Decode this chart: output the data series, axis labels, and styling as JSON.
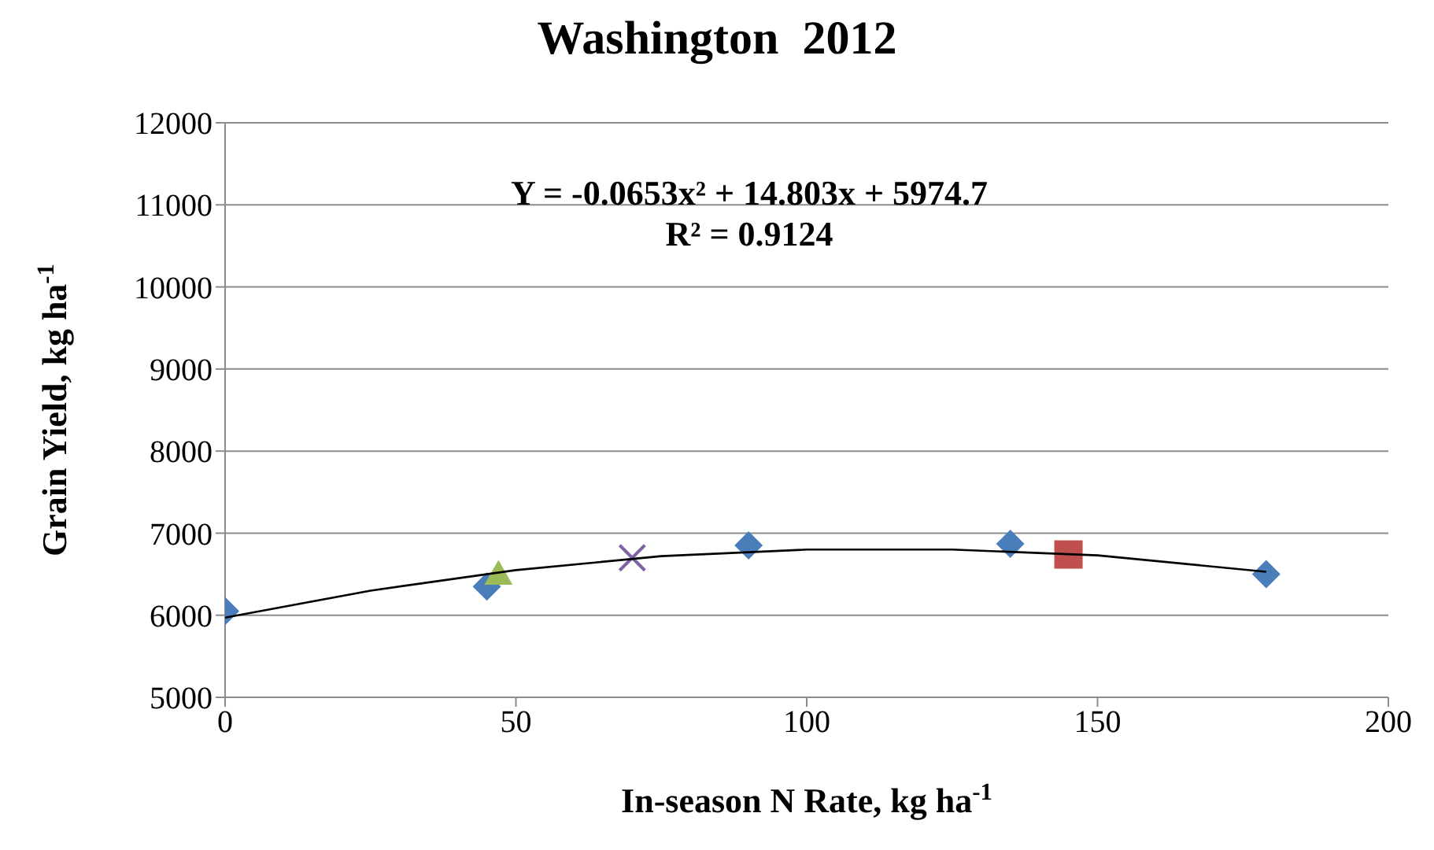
{
  "chart_data": {
    "type": "scatter",
    "title": "Washington  2012",
    "xlabel": "In-season N Rate, kg ha$^{-1}$",
    "ylabel": "Grain Yield,  kg ha$^{-1}$",
    "annotations": [
      "Y = -0.0653x² + 14.803x + 5974.7",
      "R² = 0.9124"
    ],
    "xlim": [
      0,
      200
    ],
    "xticks": [
      0,
      50,
      100,
      150,
      200
    ],
    "ylim": [
      5000,
      12000
    ],
    "yticks": [
      5000,
      6000,
      7000,
      8000,
      9000,
      10000,
      11000,
      12000
    ],
    "grid": "y",
    "legend": false,
    "series": [
      {
        "color": "#4a7ebb",
        "marker": "diamond",
        "x": [
          0,
          45,
          90,
          135,
          179
        ],
        "values": [
          6050,
          6350,
          6850,
          6870,
          6500
        ]
      },
      {
        "color": "#9bbb59",
        "marker": "triangle",
        "x": [
          47
        ],
        "values": [
          6500
        ]
      },
      {
        "color": "#8064a2",
        "marker": "cross",
        "x": [
          70
        ],
        "values": [
          6700
        ]
      },
      {
        "color": "#c0504d",
        "marker": "square",
        "x": [
          145
        ],
        "values": [
          6740
        ]
      },
      {
        "type": "line",
        "color": "#000000",
        "marker": "none",
        "x": [
          0,
          25,
          50,
          75,
          100,
          125,
          150,
          179
        ],
        "values": [
          5970,
          6300,
          6550,
          6720,
          6800,
          6800,
          6730,
          6530
        ]
      }
    ]
  }
}
